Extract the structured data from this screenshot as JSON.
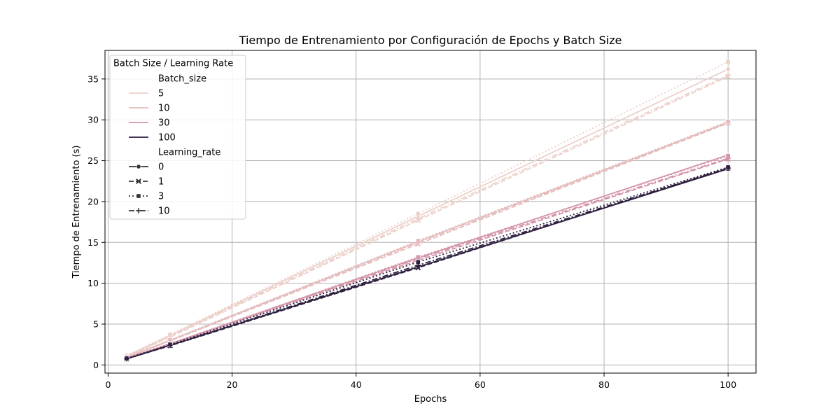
{
  "chart_data": {
    "type": "line",
    "title": "Tiempo de Entrenamiento por Configuración de Epochs y Batch Size",
    "xlabel": "Epochs",
    "ylabel": "Tiempo de Entrenamiento (s)",
    "xlim": [
      -0.5,
      104.5
    ],
    "ylim": [
      -1.0,
      38.5
    ],
    "xticks": [
      0,
      20,
      40,
      60,
      80,
      100
    ],
    "yticks": [
      0,
      5,
      10,
      15,
      20,
      25,
      30,
      35
    ],
    "grid": true,
    "legend": {
      "title": "Batch Size / Learning Rate",
      "placement": "top-left",
      "hue_title": "Batch_size",
      "style_title": "Learning_rate",
      "hue_items": [
        {
          "label": "5",
          "color": "#ecd0c9"
        },
        {
          "label": "10",
          "color": "#e4bcbd"
        },
        {
          "label": "30",
          "color": "#d495a8"
        },
        {
          "label": "100",
          "color": "#2d1e3e"
        }
      ],
      "style_items": [
        {
          "label": "0",
          "dash": "solid",
          "marker": "circle"
        },
        {
          "label": "1",
          "dash": "dashed",
          "marker": "x"
        },
        {
          "label": "3",
          "dash": "dotted",
          "marker": "square"
        },
        {
          "label": "10",
          "dash": "dashdot",
          "marker": "plus"
        }
      ]
    },
    "x": [
      3,
      10,
      50,
      100
    ],
    "series": [
      {
        "batch_size": "5",
        "learning_rate": "0",
        "color": "#ecd0c9",
        "dash": "solid",
        "marker": "circle",
        "values": [
          1.1,
          3.6,
          18.2,
          36.2
        ]
      },
      {
        "batch_size": "5",
        "learning_rate": "1",
        "color": "#ecd0c9",
        "dash": "dashed",
        "marker": "x",
        "values": [
          1.05,
          3.4,
          17.7,
          35.3
        ]
      },
      {
        "batch_size": "5",
        "learning_rate": "3",
        "color": "#ecd0c9",
        "dash": "dotted",
        "marker": "square",
        "values": [
          1.15,
          3.7,
          18.5,
          37.1
        ]
      },
      {
        "batch_size": "5",
        "learning_rate": "10",
        "color": "#ecd0c9",
        "dash": "dashdot",
        "marker": "plus",
        "values": [
          1.05,
          3.5,
          17.9,
          35.5
        ]
      },
      {
        "batch_size": "10",
        "learning_rate": "0",
        "color": "#e4bcbd",
        "dash": "solid",
        "marker": "circle",
        "values": [
          0.95,
          3.0,
          15.1,
          29.7
        ]
      },
      {
        "batch_size": "10",
        "learning_rate": "1",
        "color": "#e4bcbd",
        "dash": "dashed",
        "marker": "x",
        "values": [
          0.9,
          2.95,
          14.8,
          29.6
        ]
      },
      {
        "batch_size": "10",
        "learning_rate": "3",
        "color": "#e4bcbd",
        "dash": "dotted",
        "marker": "square",
        "values": [
          0.95,
          3.05,
          15.2,
          29.8
        ]
      },
      {
        "batch_size": "10",
        "learning_rate": "10",
        "color": "#e4bcbd",
        "dash": "dashdot",
        "marker": "plus",
        "values": [
          0.9,
          3.0,
          15.0,
          29.7
        ]
      },
      {
        "batch_size": "30",
        "learning_rate": "0",
        "color": "#d495a8",
        "dash": "solid",
        "marker": "circle",
        "values": [
          0.8,
          2.6,
          13.1,
          25.7
        ]
      },
      {
        "batch_size": "30",
        "learning_rate": "1",
        "color": "#d495a8",
        "dash": "dashed",
        "marker": "x",
        "values": [
          0.8,
          2.55,
          12.8,
          25.2
        ]
      },
      {
        "batch_size": "30",
        "learning_rate": "3",
        "color": "#d495a8",
        "dash": "dotted",
        "marker": "square",
        "values": [
          0.8,
          2.6,
          13.2,
          25.6
        ]
      },
      {
        "batch_size": "30",
        "learning_rate": "10",
        "color": "#d495a8",
        "dash": "dashdot",
        "marker": "plus",
        "values": [
          0.8,
          2.55,
          13.0,
          25.3
        ]
      },
      {
        "batch_size": "100",
        "learning_rate": "0",
        "color": "#2d1e3e",
        "dash": "solid",
        "marker": "circle",
        "values": [
          0.75,
          2.4,
          12.0,
          24.0
        ]
      },
      {
        "batch_size": "100",
        "learning_rate": "1",
        "color": "#2d1e3e",
        "dash": "dashed",
        "marker": "x",
        "values": [
          0.75,
          2.35,
          11.9,
          24.1
        ]
      },
      {
        "batch_size": "100",
        "learning_rate": "3",
        "color": "#2d1e3e",
        "dash": "dotted",
        "marker": "square",
        "values": [
          0.8,
          2.5,
          12.6,
          24.2
        ]
      },
      {
        "batch_size": "100",
        "learning_rate": "10",
        "color": "#2d1e3e",
        "dash": "dashdot",
        "marker": "plus",
        "values": [
          0.75,
          2.4,
          12.2,
          24.1
        ]
      }
    ]
  }
}
